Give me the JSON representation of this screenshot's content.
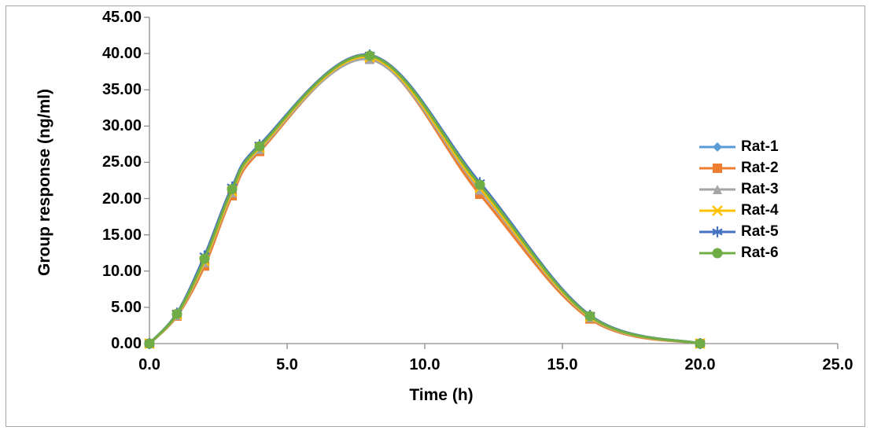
{
  "chart_data": {
    "type": "line",
    "title": "",
    "xlabel": "Time (h)",
    "ylabel": "Group response (ng/ml)",
    "x": [
      0,
      1,
      2,
      3,
      4,
      8,
      12,
      16,
      20
    ],
    "series": [
      {
        "name": "Rat-1",
        "color": "#5B9BD5",
        "marker": "diamond",
        "values": [
          0,
          4.1,
          11.8,
          21.2,
          27.2,
          39.6,
          21.9,
          3.8,
          0
        ]
      },
      {
        "name": "Rat-2",
        "color": "#ED7D31",
        "marker": "square",
        "values": [
          0,
          3.8,
          10.7,
          20.4,
          26.5,
          39.3,
          20.6,
          3.4,
          0
        ]
      },
      {
        "name": "Rat-3",
        "color": "#A5A5A5",
        "marker": "triangle",
        "values": [
          0,
          3.9,
          11.2,
          20.8,
          26.8,
          39.2,
          21.2,
          3.6,
          0
        ]
      },
      {
        "name": "Rat-4",
        "color": "#FFC000",
        "marker": "x",
        "values": [
          0,
          4.0,
          11.4,
          21.0,
          27.0,
          39.5,
          21.5,
          3.7,
          0
        ]
      },
      {
        "name": "Rat-5",
        "color": "#4472C4",
        "marker": "asterisk",
        "values": [
          0,
          4.2,
          12.1,
          21.6,
          27.4,
          39.8,
          22.2,
          3.9,
          0
        ]
      },
      {
        "name": "Rat-6",
        "color": "#70AD47",
        "marker": "circle",
        "values": [
          0,
          4.1,
          11.7,
          21.3,
          27.2,
          39.7,
          21.9,
          3.8,
          0
        ]
      }
    ],
    "xlim": [
      0,
      25
    ],
    "ylim": [
      0,
      45
    ],
    "xticks": [
      0,
      5,
      10,
      15,
      20,
      25
    ],
    "xtick_labels": [
      "0.0",
      "5.0",
      "10.0",
      "15.0",
      "20.0",
      "25.0"
    ],
    "yticks": [
      0,
      5,
      10,
      15,
      20,
      25,
      30,
      35,
      40,
      45
    ],
    "ytick_labels": [
      "0.00",
      "5.00",
      "10.00",
      "15.00",
      "20.00",
      "25.00",
      "30.00",
      "35.00",
      "40.00",
      "45.00"
    ],
    "grid": false,
    "line_smooth": true,
    "legend_position": "right",
    "axis_color": "#8c8c8c",
    "frame_color": "#a6a6a6",
    "text_color": "#000000"
  }
}
